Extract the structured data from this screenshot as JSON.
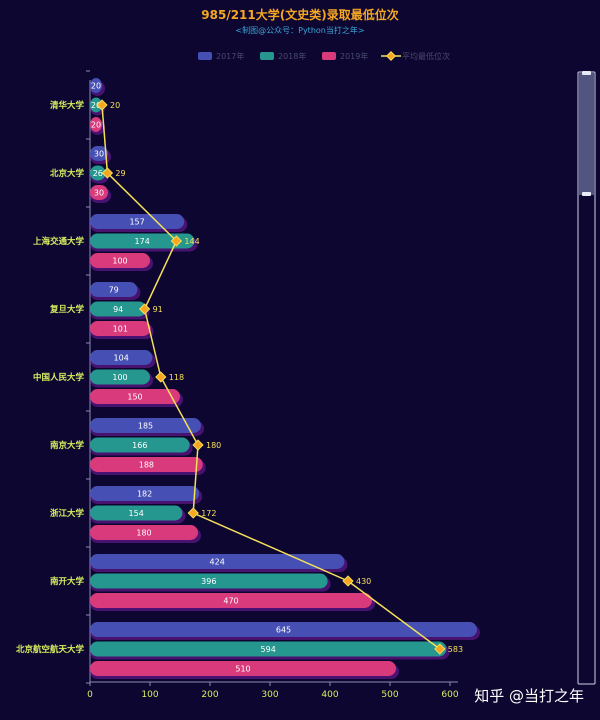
{
  "colors": {
    "background": "#0d0630",
    "title": "#f5a623",
    "subtitle": "#3ba7d9",
    "category_label": "#d8f060",
    "axis_tick_label": "#d8f060",
    "axis_line": "#8a8fb0",
    "legend_text": "#4a4a70",
    "line": "#f5e05a",
    "line_marker": "#f5a623",
    "line_label": "#f5e05a",
    "bar_shadow": "#7a1ea8",
    "scrollbar_border": "#cfd3e8",
    "scrollbar_fill": "#5a5e88"
  },
  "watermark": "知乎 @当打之年",
  "chart_data": {
    "type": "bar",
    "orientation": "horizontal",
    "title": "985/211大学(文史类)录取最低位次",
    "subtitle": "<制图@公众号：Python当打之年>",
    "categories": [
      "北京航空航天大学",
      "南开大学",
      "浙江大学",
      "南京大学",
      "中国人民大学",
      "复旦大学",
      "上海交通大学",
      "北京大学",
      "清华大学"
    ],
    "series": [
      {
        "name": "2017年",
        "type": "bar",
        "color": "#4650b4",
        "values": [
          645,
          424,
          182,
          185,
          104,
          79,
          157,
          30,
          20
        ]
      },
      {
        "name": "2018年",
        "type": "bar",
        "color": "#26978f",
        "values": [
          594,
          396,
          154,
          166,
          100,
          94,
          174,
          26,
          20
        ]
      },
      {
        "name": "2019年",
        "type": "bar",
        "color": "#d83a7c",
        "values": [
          510,
          470,
          180,
          188,
          150,
          101,
          100,
          30,
          20
        ]
      },
      {
        "name": "平均最低位次",
        "type": "line",
        "color": "#f5e05a",
        "values": [
          583,
          430,
          172,
          180,
          118,
          91,
          144,
          29,
          20
        ]
      }
    ],
    "x_axis": {
      "min": 0,
      "max": 600,
      "ticks": [
        0,
        100,
        200,
        300,
        400,
        500,
        600
      ]
    },
    "legend_position": "top-center",
    "grid": false,
    "datazoom_slider": "right"
  }
}
